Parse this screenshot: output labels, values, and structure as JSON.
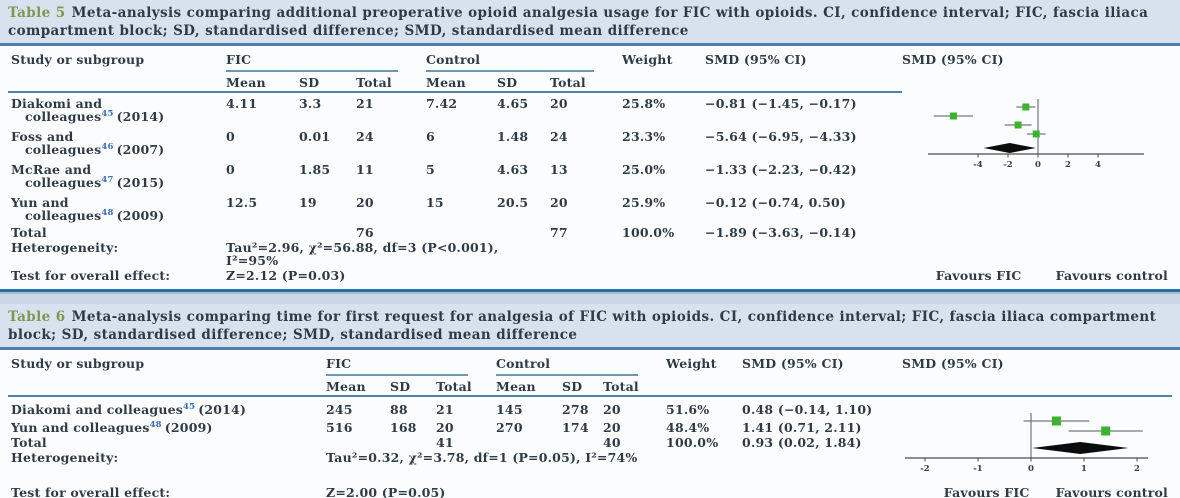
{
  "page": {
    "colors": {
      "background": "#cbd7e5",
      "caption_bg": "#d8e2ee",
      "panel_bg": "#fbfcfe",
      "rule_blue": "#4e80ab",
      "strong_blue": "#2f6da9",
      "text": "#2e3b46",
      "caption_label": "#7e9852",
      "ref_blue": "#3a6fbf",
      "marker_green": "#3cb32e",
      "diamond_black": "#0c0c0c"
    }
  },
  "table5": {
    "caption_label": "Table 5",
    "caption_text": "Meta-analysis comparing additional preoperative opioid analgesia usage for FIC with opioids. CI, confidence interval; FIC, fascia iliaca compartment block; SD, standardised difference; SMD, standardised mean difference",
    "headers": {
      "study": "Study or subgroup",
      "fic": "FIC",
      "control": "Control",
      "mean": "Mean",
      "sd": "SD",
      "total": "Total",
      "weight": "Weight",
      "smd": "SMD (95% CI)",
      "smd_plot": "SMD (95% CI)"
    },
    "rows": [
      {
        "study_line1": "Diakomi and",
        "study_line2": "colleagues",
        "ref": "45",
        "year": "(2014)",
        "fic_mean": "4.11",
        "fic_sd": "3.3",
        "fic_total": "21",
        "c_mean": "7.42",
        "c_sd": "4.65",
        "c_total": "20",
        "weight": "25.8%",
        "smd": "−0.81 (−1.45, −0.17)"
      },
      {
        "study_line1": "Foss and",
        "study_line2": "colleagues",
        "ref": "46",
        "year": "(2007)",
        "fic_mean": "0",
        "fic_sd": "0.01",
        "fic_total": "24",
        "c_mean": "6",
        "c_sd": "1.48",
        "c_total": "24",
        "weight": "23.3%",
        "smd": "−5.64 (−6.95, −4.33)"
      },
      {
        "study_line1": "McRae and",
        "study_line2": "colleagues",
        "ref": "47",
        "year": "(2015)",
        "fic_mean": "0",
        "fic_sd": "1.85",
        "fic_total": "11",
        "c_mean": "5",
        "c_sd": "4.63",
        "c_total": "13",
        "weight": "25.0%",
        "smd": "−1.33 (−2.23, −0.42)"
      },
      {
        "study_line1": "Yun and",
        "study_line2": "colleagues",
        "ref": "48",
        "year": "(2009)",
        "fic_mean": "12.5",
        "fic_sd": "19",
        "fic_total": "20",
        "c_mean": "15",
        "c_sd": "20.5",
        "c_total": "20",
        "weight": "25.9%",
        "smd": "−0.12 (−0.74, 0.50)"
      }
    ],
    "total_row": {
      "label": "Total",
      "fic_total": "76",
      "c_total": "77",
      "weight": "100.0%",
      "smd": "−1.89 (−3.63, −0.14)"
    },
    "heterogeneity": {
      "label": "Heterogeneity:",
      "line1": "Tau²=2.96, χ²=56.88, df=3 (P<0.001),",
      "line2": "I²=95%"
    },
    "overall": {
      "label": "Test for overall effect:",
      "value": "Z=2.12 (P=0.03)"
    },
    "favours_left": "Favours FIC",
    "favours_right": "Favours control"
  },
  "table6": {
    "caption_label": "Table 6",
    "caption_text": "Meta-analysis comparing time for first request for analgesia of FIC with opioids. CI, confidence interval; FIC, fascia iliaca compartment block; SD, standardised difference; SMD, standardised mean difference",
    "headers": {
      "study": "Study or subgroup",
      "fic": "FIC",
      "control": "Control",
      "mean": "Mean",
      "sd": "SD",
      "total": "Total",
      "weight": "Weight",
      "smd": "SMD (95% CI)",
      "smd_plot": "SMD (95% CI)"
    },
    "rows": [
      {
        "study": "Diakomi and colleagues",
        "ref": "45",
        "year": "(2014)",
        "fic_mean": "245",
        "fic_sd": "88",
        "fic_total": "21",
        "c_mean": "145",
        "c_sd": "278",
        "c_total": "20",
        "weight": "51.6%",
        "smd": "0.48 (−0.14, 1.10)"
      },
      {
        "study": "Yun and colleagues",
        "ref": "48",
        "year": "(2009)",
        "fic_mean": "516",
        "fic_sd": "168",
        "fic_total": "20",
        "c_mean": "270",
        "c_sd": "174",
        "c_total": "20",
        "weight": "48.4%",
        "smd": "1.41 (0.71, 2.11)"
      }
    ],
    "total_row": {
      "label": "Total",
      "fic_total": "41",
      "c_total": "40",
      "weight": "100.0%",
      "smd": "0.93 (0.02, 1.84)"
    },
    "heterogeneity": {
      "label": "Heterogeneity:",
      "line1": "Tau²=0.32, χ²=3.78, df=1 (P=0.05), I²=74%"
    },
    "overall": {
      "label": "Test for overall effect:",
      "value": "Z=2.00 (P=0.05)"
    },
    "favours_left": "Favours FIC",
    "favours_right": "Favours control"
  },
  "chart_data": [
    {
      "type": "scatter",
      "subtype": "forest",
      "title": "SMD (95% CI)",
      "ticks": [
        -4,
        -2,
        0,
        2,
        4
      ],
      "xlim": [
        -7.2,
        5.2
      ],
      "studies": [
        {
          "name": "Diakomi and colleagues (2014)",
          "est": -0.81,
          "lo": -1.45,
          "hi": -0.17,
          "weight_pct": 25.8
        },
        {
          "name": "Foss and colleagues (2007)",
          "est": -5.64,
          "lo": -6.95,
          "hi": -4.33,
          "weight_pct": 23.3
        },
        {
          "name": "McRae and colleagues (2015)",
          "est": -1.33,
          "lo": -2.23,
          "hi": -0.42,
          "weight_pct": 25.0
        },
        {
          "name": "Yun and colleagues (2009)",
          "est": -0.12,
          "lo": -0.74,
          "hi": 0.5,
          "weight_pct": 25.9
        }
      ],
      "diamond": {
        "name": "Total",
        "est": -1.89,
        "lo": -3.63,
        "hi": -0.14
      },
      "axis_label_left": "Favours FIC",
      "axis_label_right": "Favours control"
    },
    {
      "type": "scatter",
      "subtype": "forest",
      "title": "SMD (95% CI)",
      "ticks": [
        -2,
        -1,
        0,
        1,
        2
      ],
      "xlim": [
        -2.4,
        2.4
      ],
      "studies": [
        {
          "name": "Diakomi and colleagues (2014)",
          "est": 0.48,
          "lo": -0.14,
          "hi": 1.1,
          "weight_pct": 51.6
        },
        {
          "name": "Yun and colleagues (2009)",
          "est": 1.41,
          "lo": 0.71,
          "hi": 2.11,
          "weight_pct": 48.4
        }
      ],
      "diamond": {
        "name": "Total",
        "est": 0.93,
        "lo": 0.02,
        "hi": 1.84
      },
      "axis_label_left": "Favours FIC",
      "axis_label_right": "Favours control"
    }
  ]
}
